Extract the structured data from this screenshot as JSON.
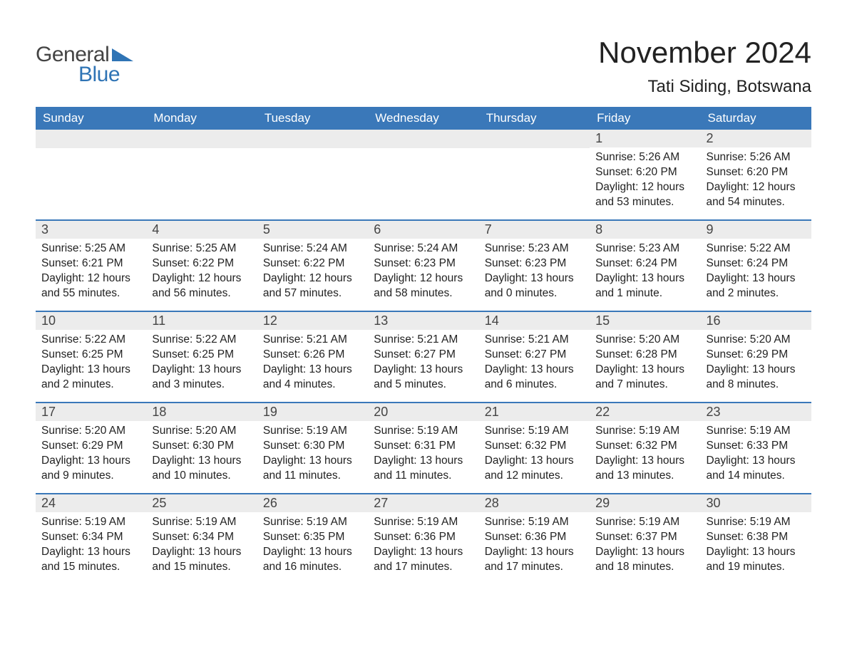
{
  "logo": {
    "text1": "General",
    "text2": "Blue",
    "text_color_1": "#444444",
    "text_color_2": "#2f74b5",
    "triangle_color": "#2f74b5"
  },
  "title": "November 2024",
  "location": "Tati Siding, Botswana",
  "colors": {
    "header_bg": "#3a78b9",
    "header_text": "#ffffff",
    "daynum_bg": "#ececec",
    "week_border": "#3a78b9",
    "body_text": "#222222",
    "page_bg": "#ffffff"
  },
  "font": {
    "family": "Arial",
    "title_size": 42,
    "location_size": 24,
    "header_size": 17,
    "daynum_size": 18,
    "content_size": 15.5
  },
  "day_labels": [
    "Sunday",
    "Monday",
    "Tuesday",
    "Wednesday",
    "Thursday",
    "Friday",
    "Saturday"
  ],
  "weeks": [
    [
      {
        "num": "",
        "sunrise": "",
        "sunset": "",
        "daylight": ""
      },
      {
        "num": "",
        "sunrise": "",
        "sunset": "",
        "daylight": ""
      },
      {
        "num": "",
        "sunrise": "",
        "sunset": "",
        "daylight": ""
      },
      {
        "num": "",
        "sunrise": "",
        "sunset": "",
        "daylight": ""
      },
      {
        "num": "",
        "sunrise": "",
        "sunset": "",
        "daylight": ""
      },
      {
        "num": "1",
        "sunrise": "Sunrise: 5:26 AM",
        "sunset": "Sunset: 6:20 PM",
        "daylight": "Daylight: 12 hours and 53 minutes."
      },
      {
        "num": "2",
        "sunrise": "Sunrise: 5:26 AM",
        "sunset": "Sunset: 6:20 PM",
        "daylight": "Daylight: 12 hours and 54 minutes."
      }
    ],
    [
      {
        "num": "3",
        "sunrise": "Sunrise: 5:25 AM",
        "sunset": "Sunset: 6:21 PM",
        "daylight": "Daylight: 12 hours and 55 minutes."
      },
      {
        "num": "4",
        "sunrise": "Sunrise: 5:25 AM",
        "sunset": "Sunset: 6:22 PM",
        "daylight": "Daylight: 12 hours and 56 minutes."
      },
      {
        "num": "5",
        "sunrise": "Sunrise: 5:24 AM",
        "sunset": "Sunset: 6:22 PM",
        "daylight": "Daylight: 12 hours and 57 minutes."
      },
      {
        "num": "6",
        "sunrise": "Sunrise: 5:24 AM",
        "sunset": "Sunset: 6:23 PM",
        "daylight": "Daylight: 12 hours and 58 minutes."
      },
      {
        "num": "7",
        "sunrise": "Sunrise: 5:23 AM",
        "sunset": "Sunset: 6:23 PM",
        "daylight": "Daylight: 13 hours and 0 minutes."
      },
      {
        "num": "8",
        "sunrise": "Sunrise: 5:23 AM",
        "sunset": "Sunset: 6:24 PM",
        "daylight": "Daylight: 13 hours and 1 minute."
      },
      {
        "num": "9",
        "sunrise": "Sunrise: 5:22 AM",
        "sunset": "Sunset: 6:24 PM",
        "daylight": "Daylight: 13 hours and 2 minutes."
      }
    ],
    [
      {
        "num": "10",
        "sunrise": "Sunrise: 5:22 AM",
        "sunset": "Sunset: 6:25 PM",
        "daylight": "Daylight: 13 hours and 2 minutes."
      },
      {
        "num": "11",
        "sunrise": "Sunrise: 5:22 AM",
        "sunset": "Sunset: 6:25 PM",
        "daylight": "Daylight: 13 hours and 3 minutes."
      },
      {
        "num": "12",
        "sunrise": "Sunrise: 5:21 AM",
        "sunset": "Sunset: 6:26 PM",
        "daylight": "Daylight: 13 hours and 4 minutes."
      },
      {
        "num": "13",
        "sunrise": "Sunrise: 5:21 AM",
        "sunset": "Sunset: 6:27 PM",
        "daylight": "Daylight: 13 hours and 5 minutes."
      },
      {
        "num": "14",
        "sunrise": "Sunrise: 5:21 AM",
        "sunset": "Sunset: 6:27 PM",
        "daylight": "Daylight: 13 hours and 6 minutes."
      },
      {
        "num": "15",
        "sunrise": "Sunrise: 5:20 AM",
        "sunset": "Sunset: 6:28 PM",
        "daylight": "Daylight: 13 hours and 7 minutes."
      },
      {
        "num": "16",
        "sunrise": "Sunrise: 5:20 AM",
        "sunset": "Sunset: 6:29 PM",
        "daylight": "Daylight: 13 hours and 8 minutes."
      }
    ],
    [
      {
        "num": "17",
        "sunrise": "Sunrise: 5:20 AM",
        "sunset": "Sunset: 6:29 PM",
        "daylight": "Daylight: 13 hours and 9 minutes."
      },
      {
        "num": "18",
        "sunrise": "Sunrise: 5:20 AM",
        "sunset": "Sunset: 6:30 PM",
        "daylight": "Daylight: 13 hours and 10 minutes."
      },
      {
        "num": "19",
        "sunrise": "Sunrise: 5:19 AM",
        "sunset": "Sunset: 6:30 PM",
        "daylight": "Daylight: 13 hours and 11 minutes."
      },
      {
        "num": "20",
        "sunrise": "Sunrise: 5:19 AM",
        "sunset": "Sunset: 6:31 PM",
        "daylight": "Daylight: 13 hours and 11 minutes."
      },
      {
        "num": "21",
        "sunrise": "Sunrise: 5:19 AM",
        "sunset": "Sunset: 6:32 PM",
        "daylight": "Daylight: 13 hours and 12 minutes."
      },
      {
        "num": "22",
        "sunrise": "Sunrise: 5:19 AM",
        "sunset": "Sunset: 6:32 PM",
        "daylight": "Daylight: 13 hours and 13 minutes."
      },
      {
        "num": "23",
        "sunrise": "Sunrise: 5:19 AM",
        "sunset": "Sunset: 6:33 PM",
        "daylight": "Daylight: 13 hours and 14 minutes."
      }
    ],
    [
      {
        "num": "24",
        "sunrise": "Sunrise: 5:19 AM",
        "sunset": "Sunset: 6:34 PM",
        "daylight": "Daylight: 13 hours and 15 minutes."
      },
      {
        "num": "25",
        "sunrise": "Sunrise: 5:19 AM",
        "sunset": "Sunset: 6:34 PM",
        "daylight": "Daylight: 13 hours and 15 minutes."
      },
      {
        "num": "26",
        "sunrise": "Sunrise: 5:19 AM",
        "sunset": "Sunset: 6:35 PM",
        "daylight": "Daylight: 13 hours and 16 minutes."
      },
      {
        "num": "27",
        "sunrise": "Sunrise: 5:19 AM",
        "sunset": "Sunset: 6:36 PM",
        "daylight": "Daylight: 13 hours and 17 minutes."
      },
      {
        "num": "28",
        "sunrise": "Sunrise: 5:19 AM",
        "sunset": "Sunset: 6:36 PM",
        "daylight": "Daylight: 13 hours and 17 minutes."
      },
      {
        "num": "29",
        "sunrise": "Sunrise: 5:19 AM",
        "sunset": "Sunset: 6:37 PM",
        "daylight": "Daylight: 13 hours and 18 minutes."
      },
      {
        "num": "30",
        "sunrise": "Sunrise: 5:19 AM",
        "sunset": "Sunset: 6:38 PM",
        "daylight": "Daylight: 13 hours and 19 minutes."
      }
    ]
  ]
}
